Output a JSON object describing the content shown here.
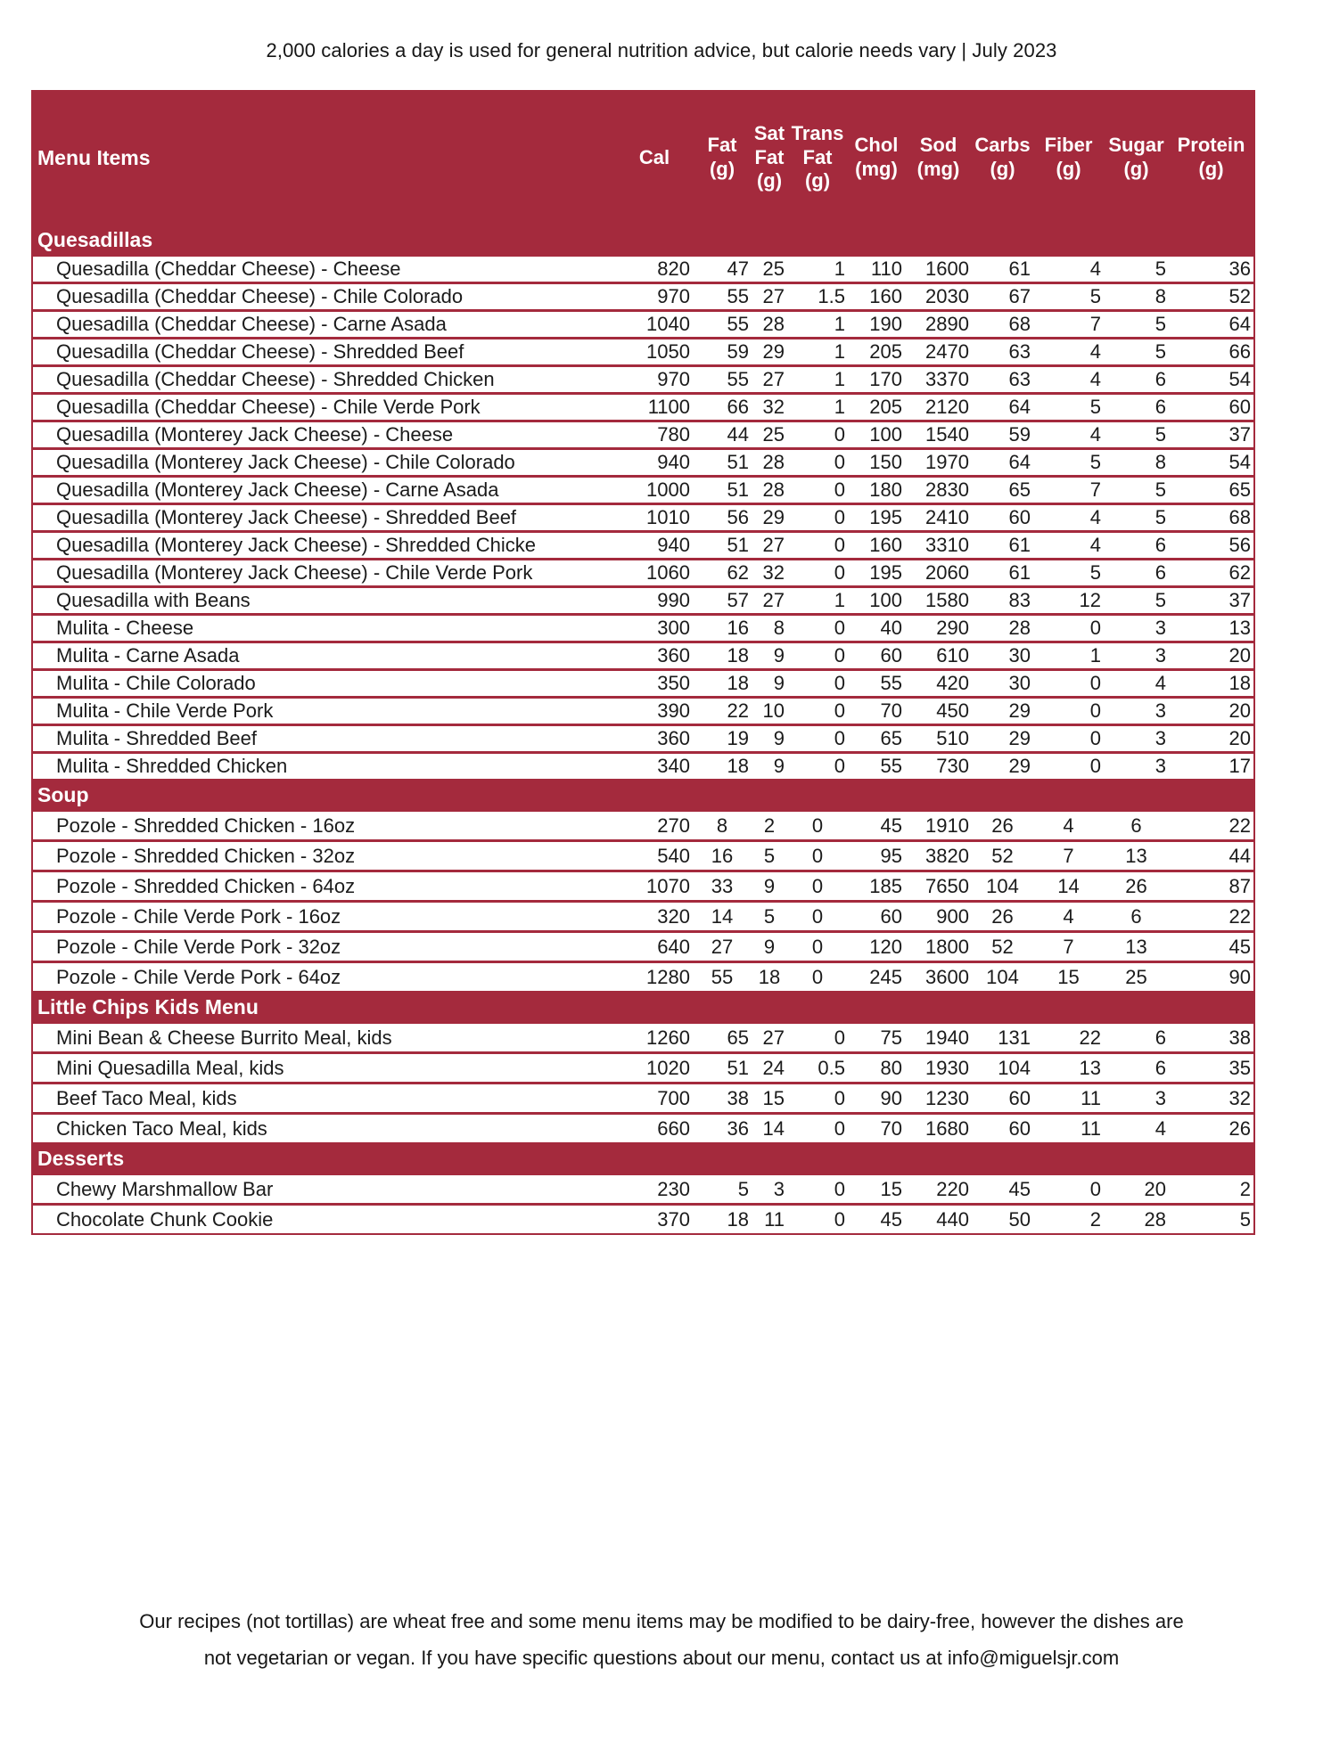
{
  "page": {
    "disclaimer": "2,000 calories a day is used for general nutrition advice, but calorie needs vary | July 2023",
    "footer": {
      "line1": "Our recipes (not tortillas) are wheat free and some menu items may be modified to be dairy-free, however the dishes are",
      "line2": "not vegetarian or vegan. If you have specific questions about our menu, contact us at info@miguelsjr.com"
    }
  },
  "colors": {
    "accent_red": "#A42A3D",
    "header_text": "#FFFFFF",
    "row_text": "#1B1B1B"
  },
  "table": {
    "menu_items_label": "Menu Items",
    "columns": [
      {
        "key": "cal",
        "lines": [
          "Cal"
        ]
      },
      {
        "key": "fat",
        "lines": [
          "Fat",
          "(g)"
        ]
      },
      {
        "key": "sat-fat",
        "lines": [
          "Sat",
          "Fat",
          "(g)"
        ]
      },
      {
        "key": "trans-fat",
        "lines": [
          "Trans",
          "Fat",
          "(g)"
        ]
      },
      {
        "key": "chol",
        "lines": [
          "Chol",
          "(mg)"
        ]
      },
      {
        "key": "sod",
        "lines": [
          "Sod",
          "(mg)"
        ]
      },
      {
        "key": "carbs",
        "lines": [
          "Carbs",
          "(g)"
        ]
      },
      {
        "key": "fiber",
        "lines": [
          "Fiber",
          "(g)"
        ]
      },
      {
        "key": "sugar",
        "lines": [
          "Sugar",
          "(g)"
        ]
      },
      {
        "key": "protein",
        "lines": [
          "Protein",
          "(g)"
        ]
      }
    ],
    "sections": [
      {
        "name": "Quesadillas",
        "values_align": "right",
        "rows": [
          {
            "name": "Quesadilla (Cheddar Cheese) - Cheese",
            "values": [
              820,
              47,
              25,
              1,
              110,
              1600,
              61,
              4,
              5,
              36
            ]
          },
          {
            "name": "Quesadilla (Cheddar Cheese) - Chile Colorado",
            "values": [
              970,
              55,
              27,
              1.5,
              160,
              2030,
              67,
              5,
              8,
              52
            ]
          },
          {
            "name": "Quesadilla (Cheddar Cheese) - Carne Asada",
            "values": [
              1040,
              55,
              28,
              1,
              190,
              2890,
              68,
              7,
              5,
              64
            ]
          },
          {
            "name": "Quesadilla (Cheddar Cheese) - Shredded Beef",
            "values": [
              1050,
              59,
              29,
              1,
              205,
              2470,
              63,
              4,
              5,
              66
            ]
          },
          {
            "name": "Quesadilla (Cheddar Cheese) - Shredded Chicken",
            "values": [
              970,
              55,
              27,
              1,
              170,
              3370,
              63,
              4,
              6,
              54
            ]
          },
          {
            "name": "Quesadilla (Cheddar Cheese) - Chile Verde Pork",
            "values": [
              1100,
              66,
              32,
              1,
              205,
              2120,
              64,
              5,
              6,
              60
            ]
          },
          {
            "name": "Quesadilla (Monterey Jack Cheese) - Cheese",
            "values": [
              780,
              44,
              25,
              0,
              100,
              1540,
              59,
              4,
              5,
              37
            ]
          },
          {
            "name": "Quesadilla (Monterey Jack Cheese) - Chile Colorado",
            "values": [
              940,
              51,
              28,
              0,
              150,
              1970,
              64,
              5,
              8,
              54
            ]
          },
          {
            "name": "Quesadilla (Monterey Jack Cheese) - Carne Asada",
            "values": [
              1000,
              51,
              28,
              0,
              180,
              2830,
              65,
              7,
              5,
              65
            ]
          },
          {
            "name": "Quesadilla (Monterey Jack Cheese) - Shredded Beef",
            "values": [
              1010,
              56,
              29,
              0,
              195,
              2410,
              60,
              4,
              5,
              68
            ]
          },
          {
            "name": "Quesadilla (Monterey Jack Cheese) - Shredded Chicke",
            "values": [
              940,
              51,
              27,
              0,
              160,
              3310,
              61,
              4,
              6,
              56
            ]
          },
          {
            "name": "Quesadilla (Monterey Jack Cheese) - Chile Verde Pork",
            "values": [
              1060,
              62,
              32,
              0,
              195,
              2060,
              61,
              5,
              6,
              62
            ]
          },
          {
            "name": "Quesadilla with Beans",
            "values": [
              990,
              57,
              27,
              1,
              100,
              1580,
              83,
              12,
              5,
              37
            ]
          },
          {
            "name": "Mulita - Cheese",
            "values": [
              300,
              16,
              8,
              0,
              40,
              290,
              28,
              0,
              3,
              13
            ]
          },
          {
            "name": "Mulita - Carne Asada",
            "values": [
              360,
              18,
              9,
              0,
              60,
              610,
              30,
              1,
              3,
              20
            ]
          },
          {
            "name": "Mulita - Chile Colorado",
            "values": [
              350,
              18,
              9,
              0,
              55,
              420,
              30,
              0,
              4,
              18
            ]
          },
          {
            "name": "Mulita - Chile Verde Pork",
            "values": [
              390,
              22,
              10,
              0,
              70,
              450,
              29,
              0,
              3,
              20
            ]
          },
          {
            "name": "Mulita - Shredded Beef",
            "values": [
              360,
              19,
              9,
              0,
              65,
              510,
              29,
              0,
              3,
              20
            ]
          },
          {
            "name": "Mulita - Shredded Chicken",
            "values": [
              340,
              18,
              9,
              0,
              55,
              730,
              29,
              0,
              3,
              17
            ]
          }
        ]
      },
      {
        "name": "Soup",
        "values_align": "center",
        "rows": [
          {
            "name": "Pozole - Shredded Chicken - 16oz",
            "values": [
              270,
              8,
              2,
              0,
              45,
              1910,
              26,
              4,
              6,
              22
            ]
          },
          {
            "name": "Pozole - Shredded Chicken - 32oz",
            "values": [
              540,
              16,
              5,
              0,
              95,
              3820,
              52,
              7,
              13,
              44
            ]
          },
          {
            "name": "Pozole - Shredded Chicken - 64oz",
            "values": [
              1070,
              33,
              9,
              0,
              185,
              7650,
              104,
              14,
              26,
              87
            ]
          },
          {
            "name": "Pozole - Chile Verde Pork - 16oz",
            "values": [
              320,
              14,
              5,
              0,
              60,
              900,
              26,
              4,
              6,
              22
            ]
          },
          {
            "name": "Pozole - Chile Verde Pork - 32oz",
            "values": [
              640,
              27,
              9,
              0,
              120,
              1800,
              52,
              7,
              13,
              45
            ]
          },
          {
            "name": "Pozole - Chile Verde Pork - 64oz",
            "values": [
              1280,
              55,
              18,
              0,
              245,
              3600,
              104,
              15,
              25,
              90
            ]
          }
        ]
      },
      {
        "name": "Little Chips Kids Menu",
        "values_align": "right",
        "rows": [
          {
            "name": "Mini Bean & Cheese Burrito Meal, kids",
            "values": [
              1260,
              65,
              27,
              0,
              75,
              1940,
              131,
              22,
              6,
              38
            ]
          },
          {
            "name": "Mini Quesadilla Meal, kids",
            "values": [
              1020,
              51,
              24,
              0.5,
              80,
              1930,
              104,
              13,
              6,
              35
            ]
          },
          {
            "name": "Beef Taco Meal, kids",
            "values": [
              700,
              38,
              15,
              0,
              90,
              1230,
              60,
              11,
              3,
              32
            ]
          },
          {
            "name": "Chicken Taco Meal, kids",
            "values": [
              660,
              36,
              14,
              0,
              70,
              1680,
              60,
              11,
              4,
              26
            ]
          }
        ]
      },
      {
        "name": "Desserts",
        "values_align": "right",
        "rows": [
          {
            "name": "Chewy Marshmallow Bar",
            "values": [
              230,
              5,
              3,
              0,
              15,
              220,
              45,
              0,
              20,
              2
            ]
          },
          {
            "name": "Chocolate Chunk Cookie",
            "values": [
              370,
              18,
              11,
              0,
              45,
              440,
              50,
              2,
              28,
              5
            ]
          }
        ]
      }
    ]
  }
}
